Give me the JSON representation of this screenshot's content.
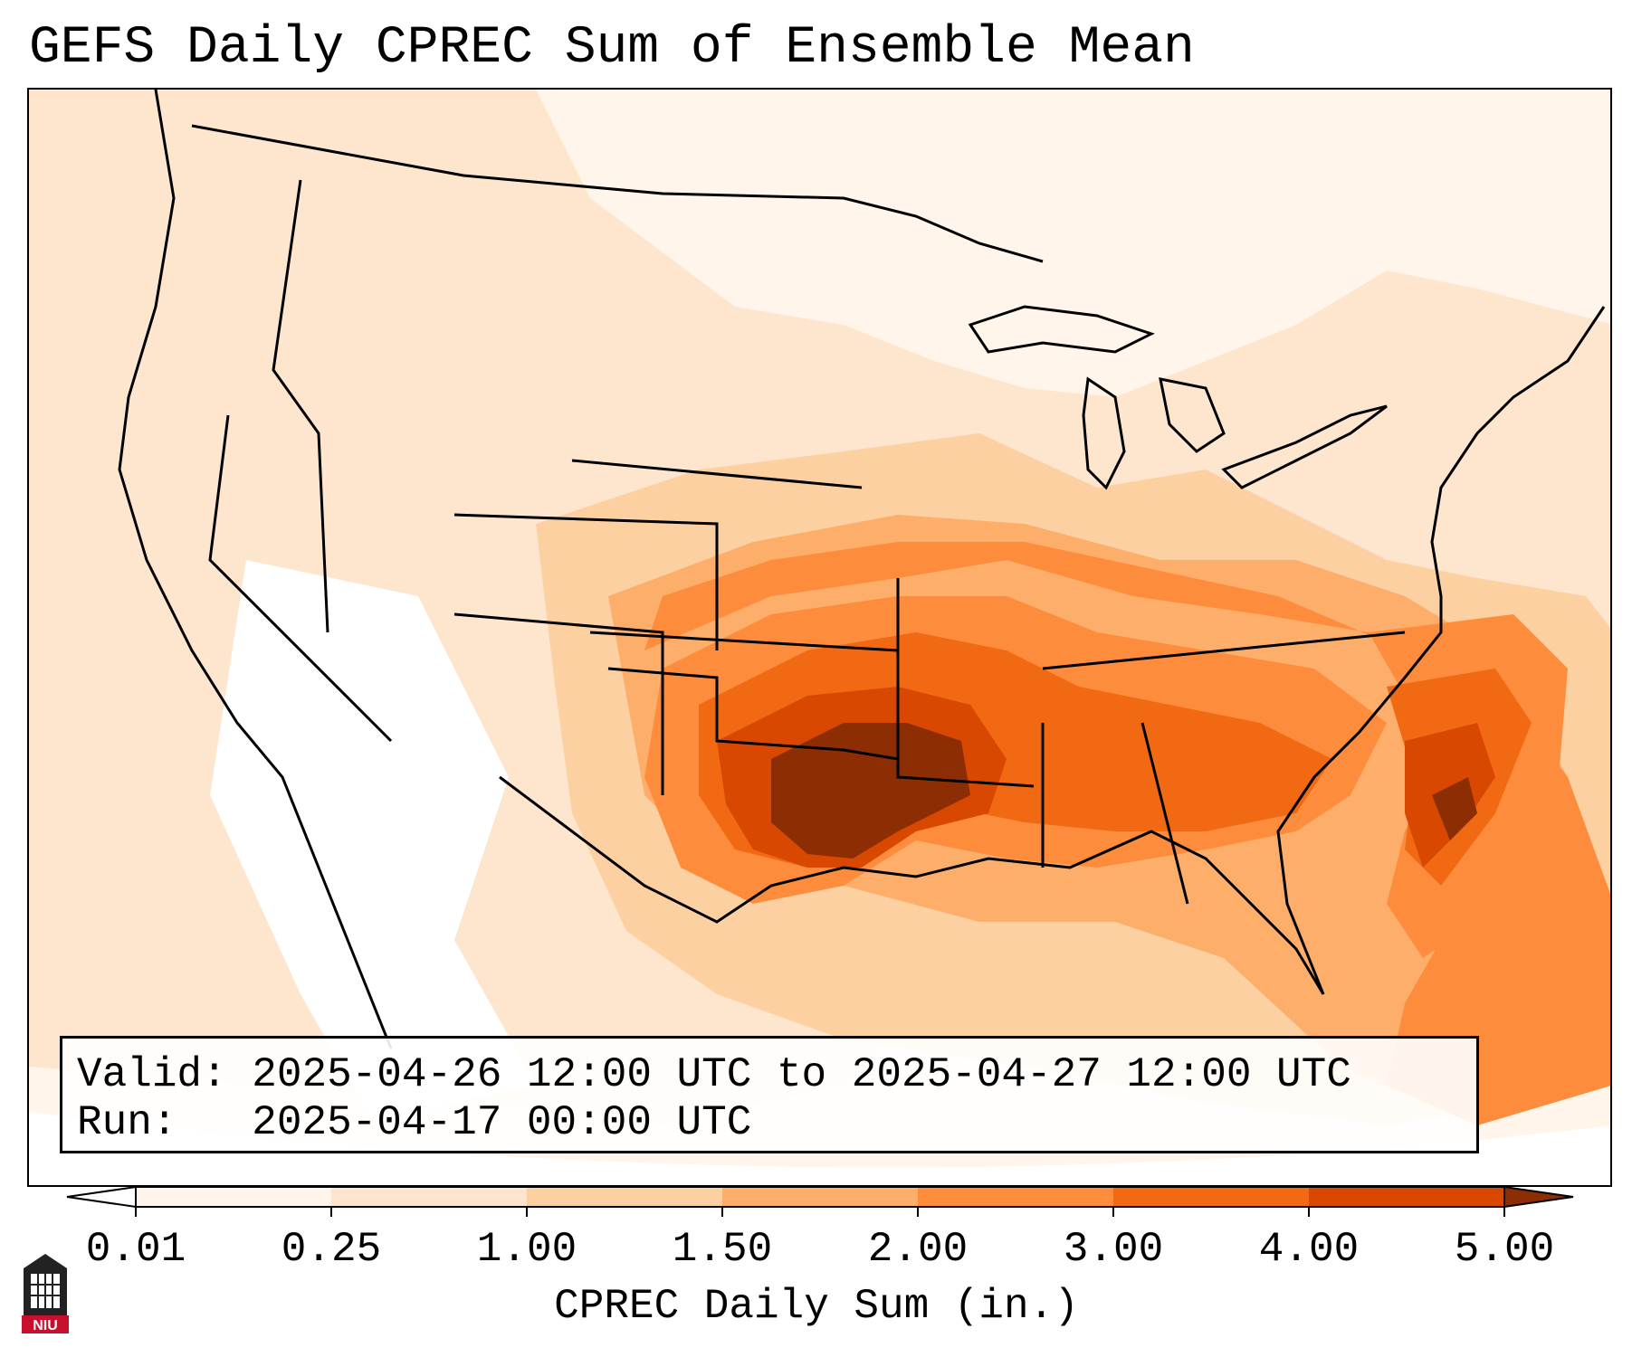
{
  "title": "GEFS Daily CPREC Sum of Ensemble Mean",
  "info": {
    "valid_label": "Valid:",
    "valid_value": "2025-04-26 12:00 UTC to 2025-04-27 12:00 UTC",
    "run_label": "Run:",
    "run_value": "2025-04-17 00:00 UTC"
  },
  "colorbar": {
    "label": "CPREC Daily Sum (in.)",
    "ticks": [
      "0.01",
      "0.25",
      "1.00",
      "1.50",
      "2.00",
      "3.00",
      "4.00",
      "5.00"
    ],
    "colors": [
      "#fff5eb",
      "#fee6ce",
      "#fdd0a2",
      "#fdae6b",
      "#fd8d3c",
      "#f16913",
      "#d94801",
      "#8c2d04"
    ],
    "extend": "both"
  },
  "logo": {
    "text": "NIU",
    "icon": "niu-logo-icon"
  },
  "map": {
    "projection": "Lambert conformal, CONUS",
    "colors": {
      "none": "#ffffff",
      "trace": "#fff5eb",
      "light": "#fee6ce",
      "moderate": "#fdd0a2",
      "medium": "#fdae6b",
      "heavy": "#fd8d3c",
      "very_heavy": "#f16913",
      "extreme": "#d94801",
      "max": "#8c2d04",
      "outline": "#000000"
    }
  }
}
